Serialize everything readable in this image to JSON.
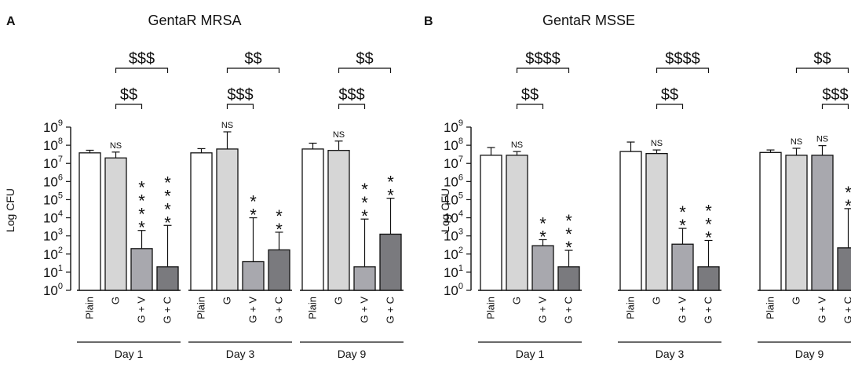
{
  "chart_data": [
    {
      "type": "bar",
      "panel_letter": "A",
      "title": "GentaR MRSA",
      "ylabel": "Log CFU",
      "yscale": "log",
      "ylim": [
        1,
        1000000000
      ],
      "ytick_base": "10",
      "yticks_exp": [
        "0",
        "1",
        "2",
        "3",
        "4",
        "5",
        "6",
        "7",
        "8",
        "9"
      ],
      "bar_labels": [
        "Plain",
        "G",
        "G + V",
        "G + C"
      ],
      "groups": [
        {
          "label": "Day 1",
          "bars": [
            {
              "label": "Plain",
              "value": 38000000,
              "err": 53000000,
              "fill": "#ffffff"
            },
            {
              "label": "G",
              "value": 20000000,
              "err": 42000000,
              "fill": "#d6d6d6",
              "note": "NS"
            },
            {
              "label": "G + V",
              "value": 200,
              "err": 2000,
              "fill": "#a8a8ae",
              "stars": "****"
            },
            {
              "label": "G + C",
              "value": 20,
              "err": 3800,
              "fill": "#7a7a7e",
              "stars": "****"
            }
          ],
          "brackets": [
            {
              "from": 1,
              "to": 2,
              "label": "$$"
            },
            {
              "from": 1,
              "to": 3,
              "label": "$$$"
            }
          ]
        },
        {
          "label": "Day 3",
          "bars": [
            {
              "label": "Plain",
              "value": 38000000,
              "err": 65000000,
              "fill": "#ffffff"
            },
            {
              "label": "G",
              "value": 62000000,
              "err": 550000000,
              "fill": "#d6d6d6",
              "note": "NS"
            },
            {
              "label": "G + V",
              "value": 38,
              "err": 10000,
              "fill": "#a8a8ae",
              "stars": "**"
            },
            {
              "label": "G + C",
              "value": 170,
              "err": 1600,
              "fill": "#7a7a7e",
              "stars": "**"
            }
          ],
          "brackets": [
            {
              "from": 1,
              "to": 2,
              "label": "$$$"
            },
            {
              "from": 1,
              "to": 3,
              "label": "$$"
            }
          ]
        },
        {
          "label": "Day 9",
          "bars": [
            {
              "label": "Plain",
              "value": 62000000,
              "err": 130000000,
              "fill": "#ffffff"
            },
            {
              "label": "G",
              "value": 52000000,
              "err": 170000000,
              "fill": "#d6d6d6",
              "note": "NS"
            },
            {
              "label": "G + V",
              "value": 20,
              "err": 8500,
              "fill": "#a8a8ae",
              "stars": "***"
            },
            {
              "label": "G + C",
              "value": 1250,
              "err": 120000,
              "fill": "#7a7a7e",
              "stars": "**"
            }
          ],
          "brackets": [
            {
              "from": 1,
              "to": 2,
              "label": "$$$"
            },
            {
              "from": 1,
              "to": 3,
              "label": "$$"
            }
          ]
        }
      ]
    },
    {
      "type": "bar",
      "panel_letter": "B",
      "title": "GentaR MSSE",
      "ylabel": "Log CFU",
      "yscale": "log",
      "ylim": [
        1,
        1000000000
      ],
      "ytick_base": "10",
      "yticks_exp": [
        "0",
        "1",
        "2",
        "3",
        "4",
        "5",
        "6",
        "7",
        "8",
        "9"
      ],
      "bar_labels": [
        "Plain",
        "G",
        "G + V",
        "G + C"
      ],
      "groups": [
        {
          "label": "Day 1",
          "bars": [
            {
              "label": "Plain",
              "value": 28000000,
              "err": 75000000,
              "fill": "#ffffff"
            },
            {
              "label": "G",
              "value": 28000000,
              "err": 45000000,
              "fill": "#d6d6d6",
              "note": "NS"
            },
            {
              "label": "G + V",
              "value": 290,
              "err": 620,
              "fill": "#a8a8ae",
              "stars": "**"
            },
            {
              "label": "G + C",
              "value": 20,
              "err": 160,
              "fill": "#7a7a7e",
              "stars": "***"
            }
          ],
          "brackets": [
            {
              "from": 1,
              "to": 2,
              "label": "$$"
            },
            {
              "from": 1,
              "to": 3,
              "label": "$$$$"
            }
          ]
        },
        {
          "label": "Day 3",
          "bars": [
            {
              "label": "Plain",
              "value": 45000000,
              "err": 150000000,
              "fill": "#ffffff"
            },
            {
              "label": "G",
              "value": 35000000,
              "err": 55000000,
              "fill": "#d6d6d6",
              "note": "NS"
            },
            {
              "label": "G + V",
              "value": 350,
              "err": 2600,
              "fill": "#a8a8ae",
              "stars": "**"
            },
            {
              "label": "G + C",
              "value": 20,
              "err": 560,
              "fill": "#7a7a7e",
              "stars": "***"
            }
          ],
          "brackets": [
            {
              "from": 1,
              "to": 2,
              "label": "$$"
            },
            {
              "from": 1,
              "to": 3,
              "label": "$$$$"
            }
          ]
        },
        {
          "label": "Day 9",
          "bars": [
            {
              "label": "Plain",
              "value": 40000000,
              "err": 55000000,
              "fill": "#ffffff"
            },
            {
              "label": "G",
              "value": 28000000,
              "err": 68000000,
              "fill": "#d6d6d6",
              "note": "NS"
            },
            {
              "label": "G + V",
              "value": 28000000,
              "err": 95000000,
              "fill": "#a8a8ae",
              "note": "NS"
            },
            {
              "label": "G + C",
              "value": 220,
              "err": 32000,
              "fill": "#7a7a7e",
              "stars": "**"
            }
          ],
          "brackets": [
            {
              "from": 2,
              "to": 3,
              "label": "$$$"
            },
            {
              "from": 1,
              "to": 3,
              "label": "$$"
            }
          ]
        }
      ]
    }
  ]
}
